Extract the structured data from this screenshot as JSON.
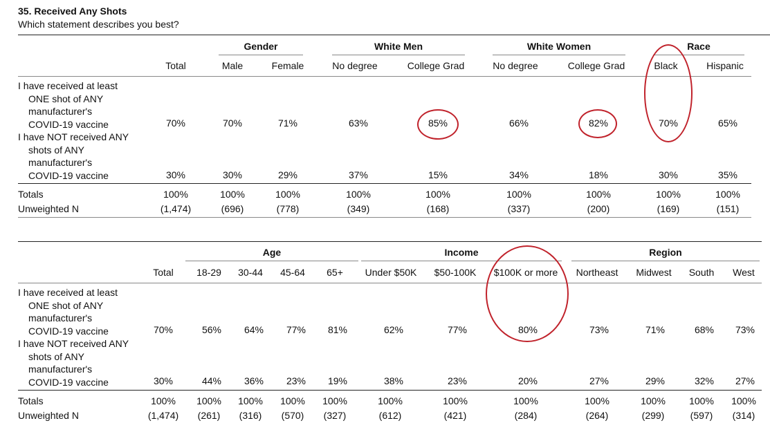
{
  "title": "35. Received Any Shots",
  "subtitle": "Which statement describes you best?",
  "row_labels": {
    "received": [
      "I have received at least",
      "ONE shot of ANY",
      "manufacturer's",
      "COVID-19 vaccine"
    ],
    "not_received": [
      "I have NOT received ANY",
      "shots of ANY",
      "manufacturer's",
      "COVID-19 vaccine"
    ],
    "totals": "Totals",
    "unweighted": "Unweighted N"
  },
  "table1": {
    "groups": {
      "gender": "Gender",
      "white_men": "White Men",
      "white_women": "White Women",
      "race": "Race"
    },
    "columns": [
      "Total",
      "Male",
      "Female",
      "No degree",
      "College Grad",
      "No degree",
      "College Grad",
      "Black",
      "Hispanic"
    ],
    "received": [
      "70%",
      "70%",
      "71%",
      "63%",
      "85%",
      "66%",
      "82%",
      "70%",
      "65%"
    ],
    "not_received": [
      "30%",
      "30%",
      "29%",
      "37%",
      "15%",
      "34%",
      "18%",
      "30%",
      "35%"
    ],
    "totals": [
      "100%",
      "100%",
      "100%",
      "100%",
      "100%",
      "100%",
      "100%",
      "100%",
      "100%"
    ],
    "unweighted": [
      "(1,474)",
      "(696)",
      "(778)",
      "(349)",
      "(168)",
      "(337)",
      "(200)",
      "(169)",
      "(151)"
    ]
  },
  "table2": {
    "groups": {
      "age": "Age",
      "income": "Income",
      "region": "Region"
    },
    "columns": [
      "Total",
      "18-29",
      "30-44",
      "45-64",
      "65+",
      "Under $50K",
      "$50-100K",
      "$100K or more",
      "Northeast",
      "Midwest",
      "South",
      "West"
    ],
    "received": [
      "70%",
      "56%",
      "64%",
      "77%",
      "81%",
      "62%",
      "77%",
      "80%",
      "73%",
      "71%",
      "68%",
      "73%"
    ],
    "not_received": [
      "30%",
      "44%",
      "36%",
      "23%",
      "19%",
      "38%",
      "23%",
      "20%",
      "27%",
      "29%",
      "32%",
      "27%"
    ],
    "totals": [
      "100%",
      "100%",
      "100%",
      "100%",
      "100%",
      "100%",
      "100%",
      "100%",
      "100%",
      "100%",
      "100%",
      "100%"
    ],
    "unweighted": [
      "(1,474)",
      "(261)",
      "(316)",
      "(570)",
      "(327)",
      "(612)",
      "(421)",
      "(284)",
      "(264)",
      "(299)",
      "(597)",
      "(314)"
    ]
  },
  "annotation_color": "#c0222b"
}
